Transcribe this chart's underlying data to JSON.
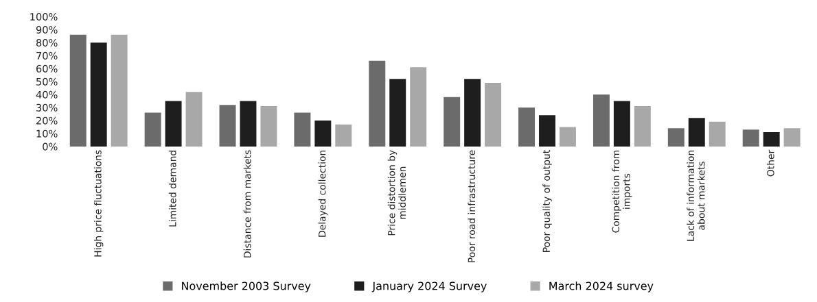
{
  "chart_data": {
    "type": "bar",
    "categories": [
      "High price fluctuations",
      "Limited demand",
      "Distance from markets",
      "Delayed collection",
      "Price distortion by\nmiddlemen",
      "Poor road infrastructure",
      "Poor quality of output",
      "Competition from\nimports",
      "Lack of information\nabout markets",
      "Other"
    ],
    "series": [
      {
        "name": "November 2003 Survey",
        "color": "#6b6b6b",
        "values": [
          86,
          26,
          32,
          26,
          66,
          38,
          30,
          40,
          14,
          13
        ]
      },
      {
        "name": "January 2024 Survey",
        "color": "#1e1e1e",
        "values": [
          80,
          35,
          35,
          20,
          52,
          52,
          24,
          35,
          22,
          11
        ]
      },
      {
        "name": "March 2024 survey",
        "color": "#a8a8a8",
        "values": [
          86,
          42,
          31,
          17,
          61,
          49,
          15,
          31,
          19,
          14
        ]
      }
    ],
    "ylim": [
      0,
      100
    ],
    "yticks": [
      {
        "value": 0,
        "label": "0%"
      },
      {
        "value": 10,
        "label": "10%"
      },
      {
        "value": 20,
        "label": "20%"
      },
      {
        "value": 30,
        "label": "30%"
      },
      {
        "value": 40,
        "label": "40%"
      },
      {
        "value": 50,
        "label": "50%"
      },
      {
        "value": 60,
        "label": "60%"
      },
      {
        "value": 70,
        "label": "70%"
      },
      {
        "value": 80,
        "label": "80%"
      },
      {
        "value": 90,
        "label": "90%"
      },
      {
        "value": 100,
        "label": "100%"
      }
    ],
    "grid": false,
    "legend": "bottom"
  }
}
